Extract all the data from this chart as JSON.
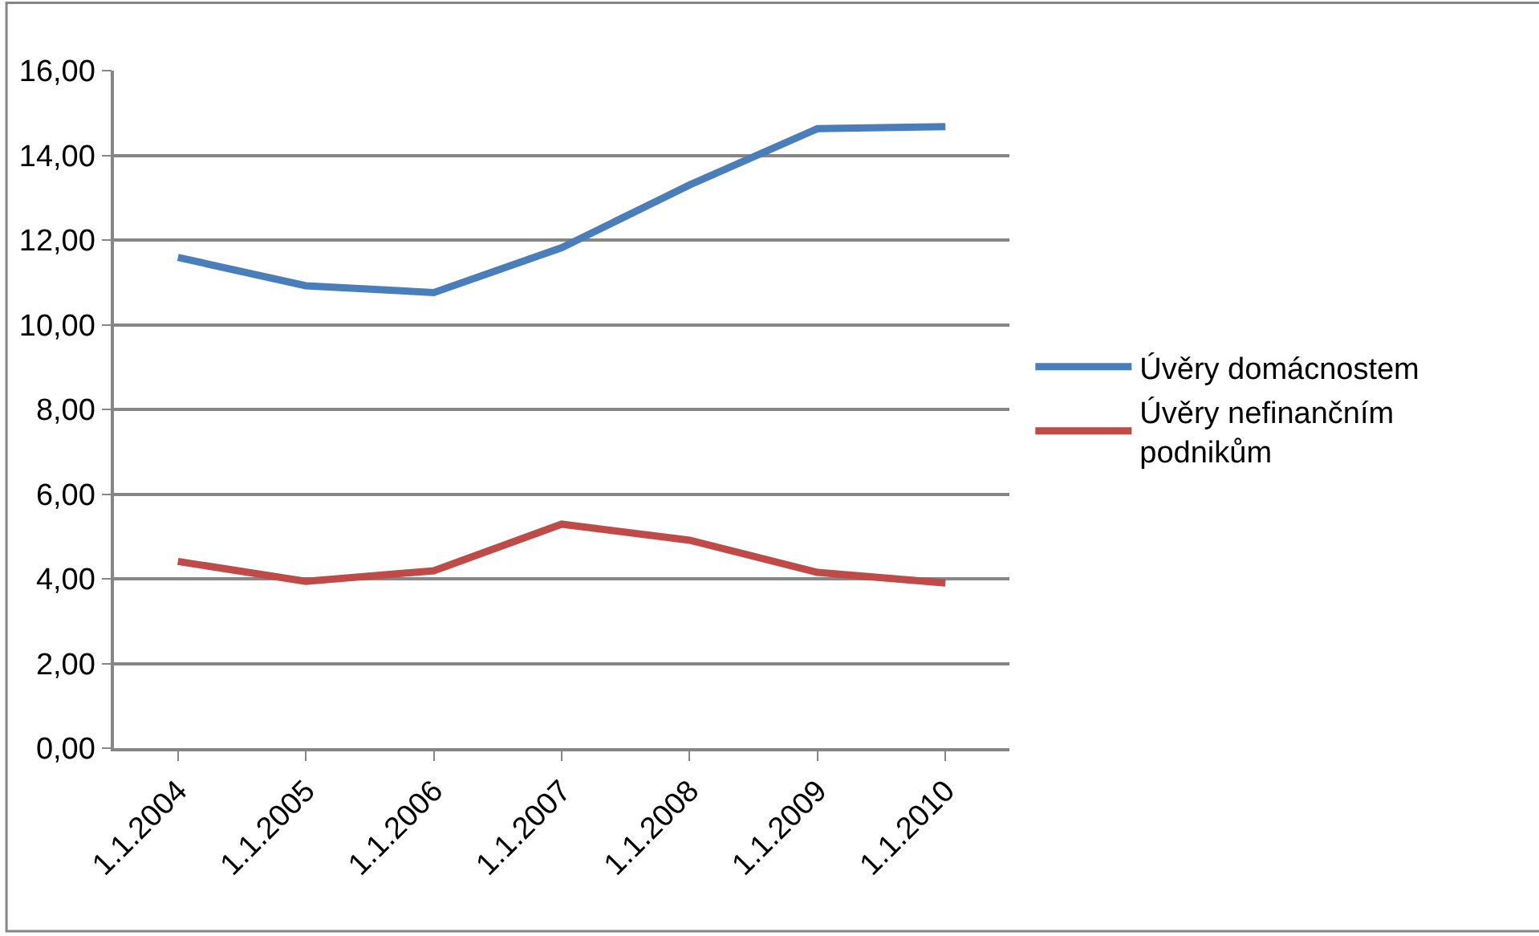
{
  "chart_data": {
    "type": "line",
    "categories": [
      "1.1.2004",
      "1.1.2005",
      "1.1.2006",
      "1.1.2007",
      "1.1.2008",
      "1.1.2009",
      "1.1.2010"
    ],
    "series": [
      {
        "name": "Úvěry domácnostem",
        "color": "#4a7ebb",
        "values": [
          11.59,
          10.92,
          10.76,
          11.82,
          13.3,
          14.63,
          14.68
        ]
      },
      {
        "name": "Úvěry nefinančním podnikům",
        "color": "#be4b48",
        "values": [
          4.41,
          3.94,
          4.19,
          5.29,
          4.91,
          4.15,
          3.9
        ]
      }
    ],
    "ylim": [
      0,
      16
    ],
    "yticks": [
      {
        "value": 0,
        "label": "0,00"
      },
      {
        "value": 2,
        "label": "2,00"
      },
      {
        "value": 4,
        "label": "4,00"
      },
      {
        "value": 6,
        "label": "6,00"
      },
      {
        "value": 8,
        "label": "8,00"
      },
      {
        "value": 10,
        "label": "10,00"
      },
      {
        "value": 12,
        "label": "12,00"
      },
      {
        "value": 14,
        "label": "14,00"
      },
      {
        "value": 16,
        "label": "16,00"
      }
    ],
    "grid": "y",
    "legend": "right",
    "marker": "none",
    "line_style": "solid"
  }
}
